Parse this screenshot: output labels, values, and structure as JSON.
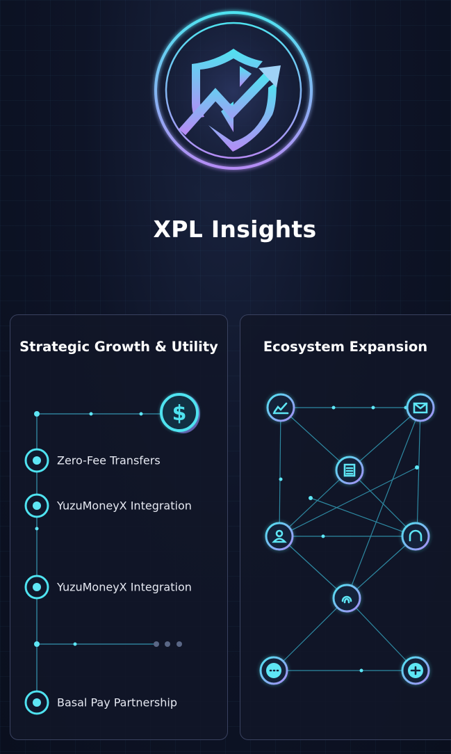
{
  "title": "XPL Insights",
  "colors": {
    "accent_cyan": "#4fe3f0",
    "accent_purple": "#b58cf5",
    "background": "#0e1427",
    "panel_border": "#3a4260"
  },
  "logo": {
    "icon": "shield-with-rising-arrow-icon"
  },
  "strategic_panel": {
    "title": "Strategic Growth & Utility",
    "coin_icon": "dollar-coin-icon",
    "items": [
      {
        "label": "Zero-Fee Transfers"
      },
      {
        "label": "YuzuMoneyX Integration"
      },
      {
        "label": "YuzuMoneyX Integration"
      },
      {
        "label": "Basal Pay Partnership"
      }
    ]
  },
  "ecosystem_panel": {
    "title": "Ecosystem Expansion",
    "nodes": [
      {
        "icon": "chart-icon"
      },
      {
        "icon": "wallet-icon"
      },
      {
        "icon": "calculator-icon"
      },
      {
        "icon": "user-icon"
      },
      {
        "icon": "headphones-icon"
      },
      {
        "icon": "fingerprint-icon"
      },
      {
        "icon": "chat-icon"
      },
      {
        "icon": "exchange-icon"
      }
    ]
  }
}
